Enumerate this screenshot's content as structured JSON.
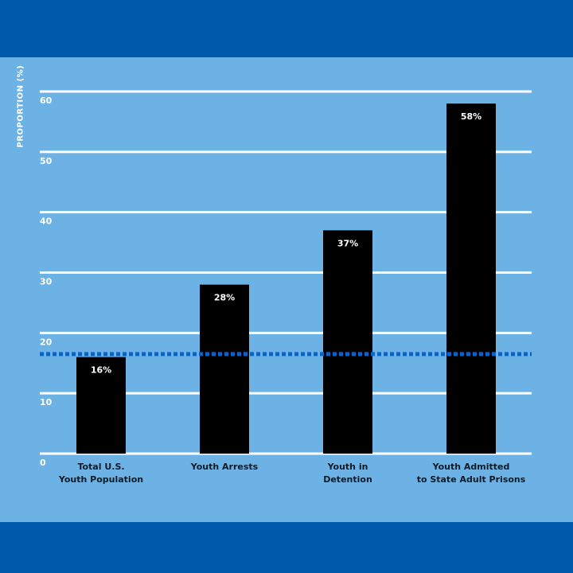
{
  "colors": {
    "frame": "#0058ad",
    "panel": "#6cb2e4",
    "bar": "#000000",
    "grid": "#ffffff",
    "reference_line": "#0a64c0",
    "text": "#ffffff",
    "xlabel_text": "#0d1b2a"
  },
  "chart_data": {
    "type": "bar",
    "ylabel": "PROPORTION (%)",
    "ylim": [
      0,
      60
    ],
    "yticks": [
      "0",
      "10",
      "20",
      "30",
      "40",
      "50",
      "60"
    ],
    "grid": true,
    "categories": [
      [
        "Total U.S.",
        "Youth Population"
      ],
      [
        "Youth Arrests"
      ],
      [
        "Youth in",
        "Detention"
      ],
      [
        "Youth Admitted",
        "to State Adult Prisons"
      ]
    ],
    "values": [
      16,
      28,
      37,
      58
    ],
    "data_labels": [
      "16%",
      "28%",
      "37%",
      "58%"
    ],
    "reference_line": {
      "value": 16.5,
      "style": "dotted"
    }
  }
}
